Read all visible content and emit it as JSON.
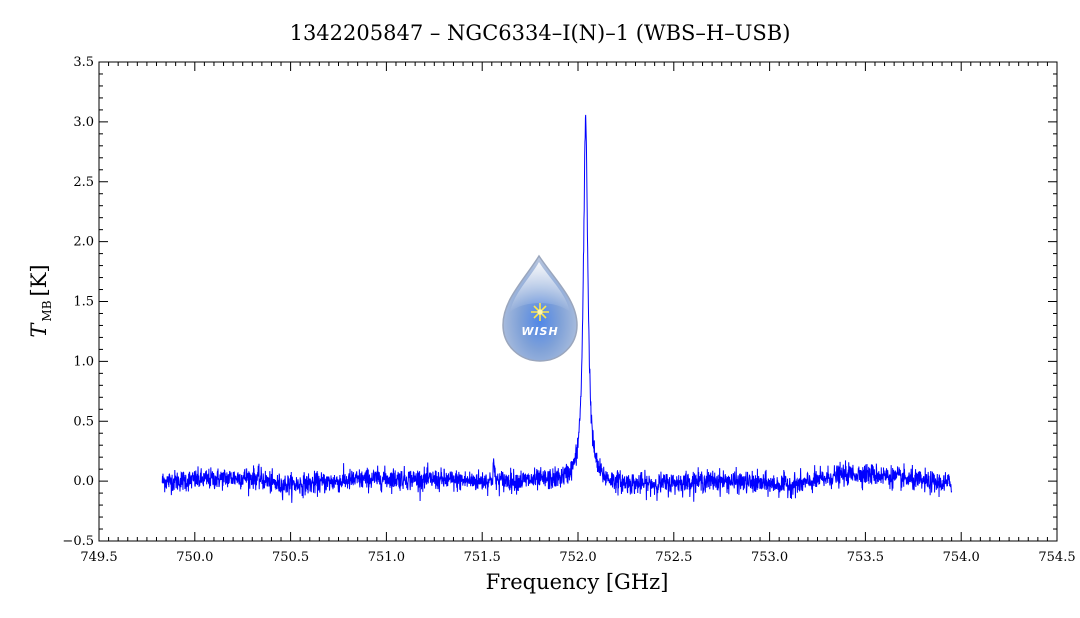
{
  "chart_data": {
    "type": "line",
    "title": "1342205847 – NGC6334–I(N)–1 (WBS–H–USB)",
    "xlabel": "Frequency [GHz]",
    "ylabel_main": "T",
    "ylabel_sub": "MB",
    "ylabel_unit": "[K]",
    "xlim": [
      749.5,
      754.5
    ],
    "ylim": [
      -0.5,
      3.5
    ],
    "x_ticks": [
      "749.5",
      "750.0",
      "750.5",
      "751.0",
      "751.5",
      "752.0",
      "752.5",
      "753.0",
      "753.5",
      "754.0",
      "754.5"
    ],
    "y_ticks": [
      "−0.5",
      "0.0",
      "0.5",
      "1.0",
      "1.5",
      "2.0",
      "2.5",
      "3.0",
      "3.5"
    ],
    "series": [
      {
        "color": "#0000ff",
        "x_range": [
          749.83,
          753.95
        ],
        "noise_rms": 0.045,
        "baseline": [
          [
            749.83,
            0.0
          ],
          [
            750.3,
            0.03
          ],
          [
            750.45,
            -0.03
          ],
          [
            751.0,
            0.02
          ],
          [
            751.5,
            0.0
          ],
          [
            751.9,
            0.0
          ],
          [
            752.35,
            -0.03
          ],
          [
            752.7,
            0.0
          ],
          [
            753.1,
            -0.03
          ],
          [
            753.45,
            0.06
          ],
          [
            753.95,
            -0.02
          ]
        ],
        "peaks": [
          {
            "center": 752.04,
            "peak": 3.02,
            "width": 0.014
          },
          {
            "center": 751.56,
            "peak": 0.18,
            "width": 0.003
          }
        ]
      }
    ],
    "grid": false,
    "legend": "none"
  },
  "logo": {
    "label": "WISH"
  }
}
